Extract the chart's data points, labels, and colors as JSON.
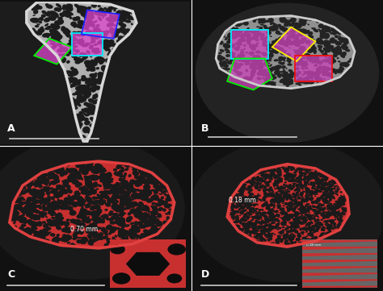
{
  "bg_color": "#111111",
  "panel_bg": "#0a0a0a",
  "labels": [
    "A",
    "B",
    "C",
    "D"
  ],
  "label_color": "#ffffff",
  "label_fontsize": 9,
  "text_C": "0.70 mm",
  "text_D": "0.18 mm",
  "bone_gray": "#a0a0a0",
  "bone_edge_gray": "#c8c8c8",
  "bone_red": "#d63030",
  "bone_edge_red": "#e04040",
  "dark_hole": "#0d0d0d",
  "vignette_color": "#1a1a1a",
  "rect_colors_A": [
    "#0033ff",
    "#00eeff",
    "#00dd00"
  ],
  "rect_colors_B": [
    "#00eeff",
    "#ffee00",
    "#00dd00",
    "#ee1111"
  ],
  "inner_fill_A": "#dd44cc",
  "inner_fill_B": "#cc44bb",
  "scale_bar_color": "#cccccc",
  "inset_bg_C": "#111111",
  "inset_bg_D": "#555555"
}
